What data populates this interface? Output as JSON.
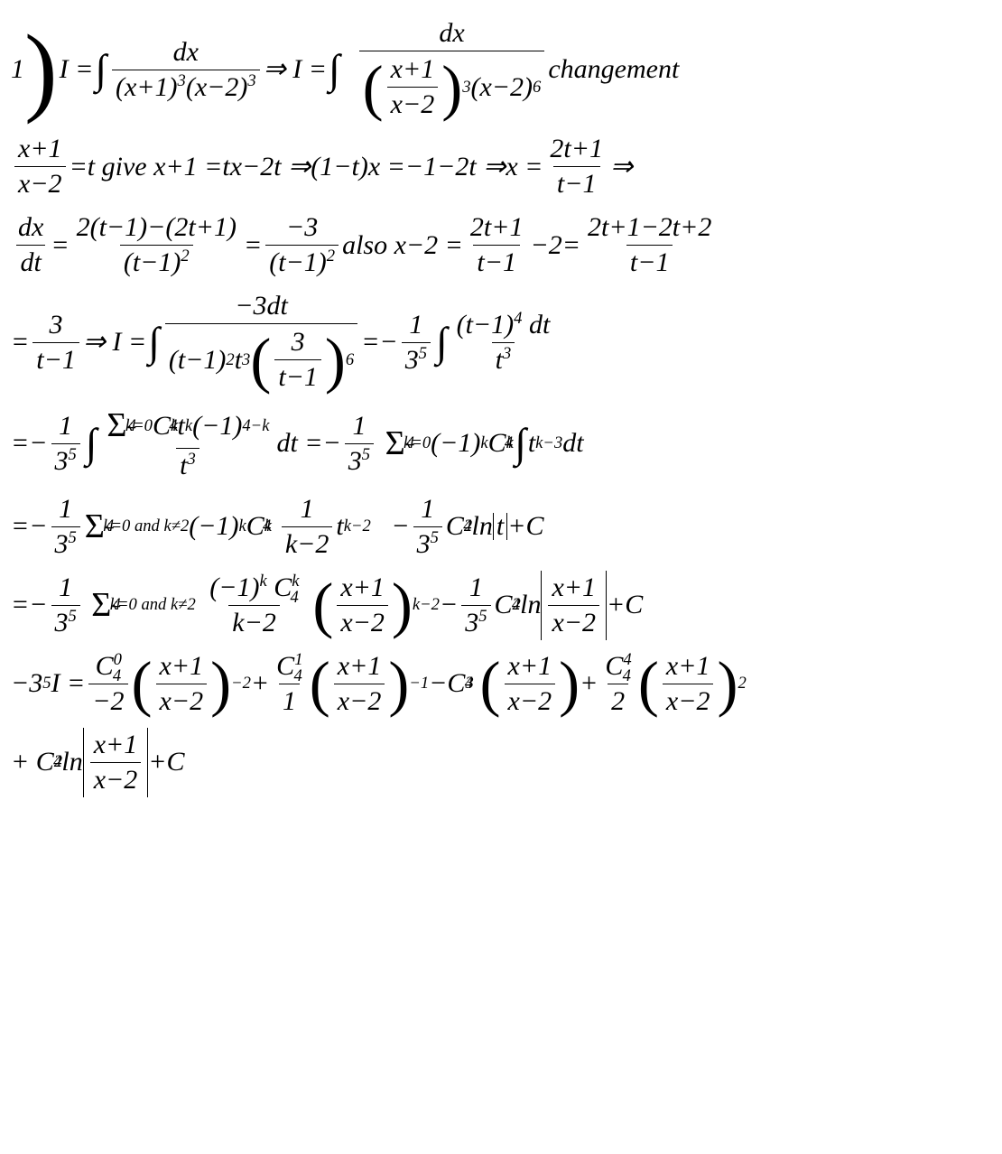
{
  "colors": {
    "text": "#000000",
    "background": "#ffffff",
    "rule": "#000000"
  },
  "typography": {
    "family": "Times New Roman serif",
    "style": "italic",
    "base_size_pt": 30
  },
  "lines": {
    "l1": {
      "lead": "1",
      "I": "I =",
      "dx1": "dx",
      "den1a": "(x+1)",
      "exp3a": "3",
      "den1b": "(x−2)",
      "exp3b": "3",
      "arrow1": " ⇒ I =",
      "dx2": "dx",
      "den2a_num": "x+1",
      "den2a_den": "x−2",
      "exp3c": "3",
      "den2b": "(x−2)",
      "exp6": "6",
      "trail": " changement"
    },
    "l2": {
      "f_num": "x+1",
      "f_den": "x−2",
      "a": " =t give x+1 =tx−2t ⇒(1−t)x =−1−2t ⇒x =",
      "g_num": "2t+1",
      "g_den": "t−1",
      "b": " ⇒"
    },
    "l3": {
      "dxdt_num": "dx",
      "dxdt_den": "dt",
      "eq1": " =",
      "f1_num": "2(t−1)−(2t+1)",
      "f1_den": "(t−1)",
      "f1_exp": "2",
      "eq2": " =",
      "f2_num": "−3",
      "f2_den": "(t−1)",
      "f2_exp": "2",
      "mid": " also x−2 =",
      "f3_num": "2t+1",
      "f3_den": "t−1",
      "m2": "−2=",
      "f4_num": "2t+1−2t+2",
      "f4_den": "t−1"
    },
    "l4": {
      "f1_num": "3",
      "f1_den": "t−1",
      "a": " ⇒ I = ",
      "num2": "−3dt",
      "d2a": "(t−1)",
      "d2a_e": "2",
      "d2b": "t",
      "d2b_e": "3",
      "d2c_num": "3",
      "d2c_den": "t−1",
      "d2c_e": "6",
      "eq": " =−",
      "f3_num": "1",
      "f3_den": "3",
      "f3_de": "5",
      "num4a": "(t−1)",
      "num4a_e": "4",
      "num4b": " dt",
      "den4": "t",
      "den4_e": "3"
    },
    "l5": {
      "pre": "=−",
      "f1_num": "1",
      "f1_den": "3",
      "f1_de": "5",
      "sig_lo": "k=0",
      "sig_hi": "4",
      "num_a": " C",
      "num_a_sub": "4",
      "num_a_sup": "k",
      "num_b": " t",
      "num_b_sup": "k",
      "num_c": "(−1)",
      "num_c_sup": "4−k",
      "den": "t",
      "den_e": "3",
      "mid": "dt =−",
      "f2_num": "1",
      "f2_den": "3",
      "f2_de": "5",
      "sig2_lo": "k=0",
      "sig2_hi": "4",
      "r1": " (−1)",
      "r1_e": "k",
      "r2": " C",
      "r2_sub": "4",
      "r2_sup": "k",
      "r3": " t",
      "r3_sup": "k−3",
      "r4": " dt"
    },
    "l6": {
      "pre": "=−",
      "f1_num": "1",
      "f1_den": "3",
      "f1_de": "5",
      "sig_lo": "k=0 and k≠2",
      "sig_hi": "4",
      "a": " (−1)",
      "a_e": "k",
      "b": " C",
      "b_sub": "4",
      "b_sup": "k",
      "f2_num": "1",
      "f2_den": "k−2",
      "c": "t",
      "c_e": "k−2",
      "gap": "   −",
      "f3_num": "1",
      "f3_den": "3",
      "f3_de": "5",
      "d": " C",
      "d_sub": "4",
      "d_sup": "2",
      "e": " ln",
      "abs": "t",
      "f": " +C"
    },
    "l7": {
      "pre": "=−",
      "f1_num": "1",
      "f1_den": "3",
      "f1_de": "5",
      "sig_lo": "k=0 and k≠2",
      "sig_hi": "4",
      "f2_num_a": "(−1)",
      "f2_num_a_e": "k",
      "f2_num_b": " C",
      "f2_num_b_sub": "4",
      "f2_num_b_sup": "k",
      "f2_den": "k−2",
      "p_num": "x+1",
      "p_den": "x−2",
      "p_e": "k−2",
      "mid": " −",
      "f3_num": "1",
      "f3_den": "3",
      "f3_de": "5",
      "d": " C",
      "d_sub": "4",
      "d_sup": "2",
      "e": " ln",
      "abs_num": "x+1",
      "abs_den": "x−2",
      "f": " +C"
    },
    "l8": {
      "pre": "−3",
      "pre_e": "5",
      "pre2": "I =",
      "t1_num": "C",
      "t1_sub": "4",
      "t1_sup": "0",
      "t1_den": "−2",
      "p1_num": "x+1",
      "p1_den": "x−2",
      "p1_e": "−2",
      "plus1": "+",
      "t2_num": "C",
      "t2_sub": "4",
      "t2_sup": "1",
      "t2_den": "1",
      "p2_num": "x+1",
      "p2_den": "x−2",
      "p2_e": "−1",
      "minus": "−C",
      "m_sub": "4",
      "m_sup": "3",
      "p3_num": "x+1",
      "p3_den": "x−2",
      "plus2": " +",
      "t4_num": "C",
      "t4_sub": "4",
      "t4_sup": "4",
      "t4_den": "2",
      "p4_num": "x+1",
      "p4_den": "x−2",
      "p4_e": "2"
    },
    "l9": {
      "pre": "+ C",
      "c_sub": "4",
      "c_sup": "2",
      "ln": "ln",
      "abs_num": "x+1",
      "abs_den": "x−2",
      "trail": " +C"
    }
  }
}
